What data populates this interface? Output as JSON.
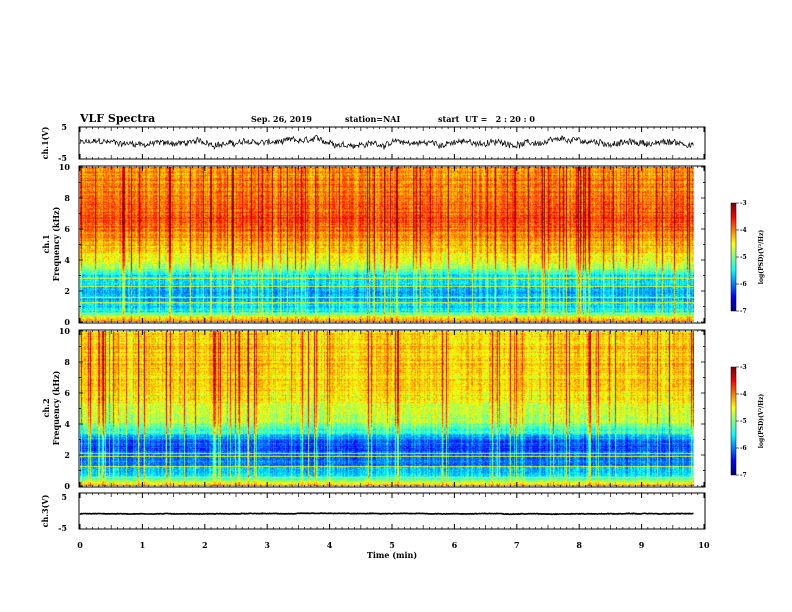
{
  "header": {
    "title": "VLF Spectra",
    "date": "Sep. 26, 2019",
    "station": "station=NAI",
    "start_ut": "start  UT =   2 : 20 : 0"
  },
  "chart_data": [
    {
      "type": "line",
      "name": "ch1-voltage",
      "ylabel": "ch.1(V)",
      "ylim": [
        -5,
        5
      ],
      "yticks": [
        "5",
        "-5"
      ],
      "xlim": [
        0,
        10
      ],
      "x_end": 9.83,
      "baseline": 0,
      "fluctuation": 1.2
    },
    {
      "type": "heatmap",
      "name": "ch1-spectrogram",
      "ylabel": "ch.1\nFrequency (kHz)",
      "yticks": [
        "0",
        "2",
        "4",
        "6",
        "8",
        "10"
      ],
      "ylim": [
        0,
        10
      ],
      "xlim": [
        0,
        10
      ],
      "x_end": 9.83,
      "colorbar": {
        "label": "log(PSD)(V²/Hz)",
        "ticks": [
          "-3",
          "-4",
          "-5",
          "-6",
          "-7"
        ],
        "range": [
          -7,
          -3
        ]
      },
      "profile": [
        {
          "f": 0.0,
          "v": -4.0
        },
        {
          "f": 0.3,
          "v": -4.6
        },
        {
          "f": 0.6,
          "v": -5.4
        },
        {
          "f": 1.0,
          "v": -5.6
        },
        {
          "f": 1.5,
          "v": -5.8
        },
        {
          "f": 2.0,
          "v": -5.9
        },
        {
          "f": 2.5,
          "v": -5.5
        },
        {
          "f": 3.0,
          "v": -5.6
        },
        {
          "f": 3.5,
          "v": -4.8
        },
        {
          "f": 4.0,
          "v": -4.6
        },
        {
          "f": 5.0,
          "v": -4.2
        },
        {
          "f": 6.0,
          "v": -3.9
        },
        {
          "f": 7.0,
          "v": -3.8
        },
        {
          "f": 8.0,
          "v": -3.9
        },
        {
          "f": 9.0,
          "v": -4.0
        },
        {
          "f": 10.0,
          "v": -4.1
        }
      ],
      "lines_khz": [
        0.55,
        1.25,
        1.55,
        2.3,
        2.8
      ]
    },
    {
      "type": "heatmap",
      "name": "ch2-spectrogram",
      "ylabel": "ch.2\nFrequency (kHz)",
      "yticks": [
        "0",
        "2",
        "4",
        "6",
        "8",
        "10"
      ],
      "ylim": [
        0,
        10
      ],
      "xlim": [
        0,
        10
      ],
      "x_end": 9.83,
      "colorbar": {
        "label": "log(PSD)(V²/Hz)",
        "ticks": [
          "-3",
          "-4",
          "-5",
          "-6",
          "-7"
        ],
        "range": [
          -7,
          -3
        ]
      },
      "profile": [
        {
          "f": 0.0,
          "v": -4.2
        },
        {
          "f": 0.3,
          "v": -4.8
        },
        {
          "f": 0.6,
          "v": -5.6
        },
        {
          "f": 1.0,
          "v": -5.8
        },
        {
          "f": 1.5,
          "v": -6.0
        },
        {
          "f": 2.0,
          "v": -6.1
        },
        {
          "f": 2.5,
          "v": -6.2
        },
        {
          "f": 3.0,
          "v": -6.0
        },
        {
          "f": 3.5,
          "v": -5.3
        },
        {
          "f": 4.0,
          "v": -4.9
        },
        {
          "f": 5.0,
          "v": -4.6
        },
        {
          "f": 6.0,
          "v": -4.4
        },
        {
          "f": 7.0,
          "v": -4.3
        },
        {
          "f": 8.0,
          "v": -4.3
        },
        {
          "f": 9.0,
          "v": -4.3
        },
        {
          "f": 10.0,
          "v": -4.4
        }
      ],
      "lines_khz": [
        0.55,
        1.25,
        1.9,
        2.05
      ]
    },
    {
      "type": "line",
      "name": "ch3-voltage",
      "ylabel": "ch.3(V)",
      "ylim": [
        -5,
        5
      ],
      "yticks": [
        "5",
        "-5"
      ],
      "xlim": [
        0,
        10
      ],
      "x_end": 9.83,
      "baseline": -0.8,
      "fluctuation": 0.1
    }
  ],
  "xaxis": {
    "label": "Time (min)",
    "ticks": [
      "0",
      "1",
      "2",
      "3",
      "4",
      "5",
      "6",
      "7",
      "8",
      "9",
      "10"
    ]
  }
}
